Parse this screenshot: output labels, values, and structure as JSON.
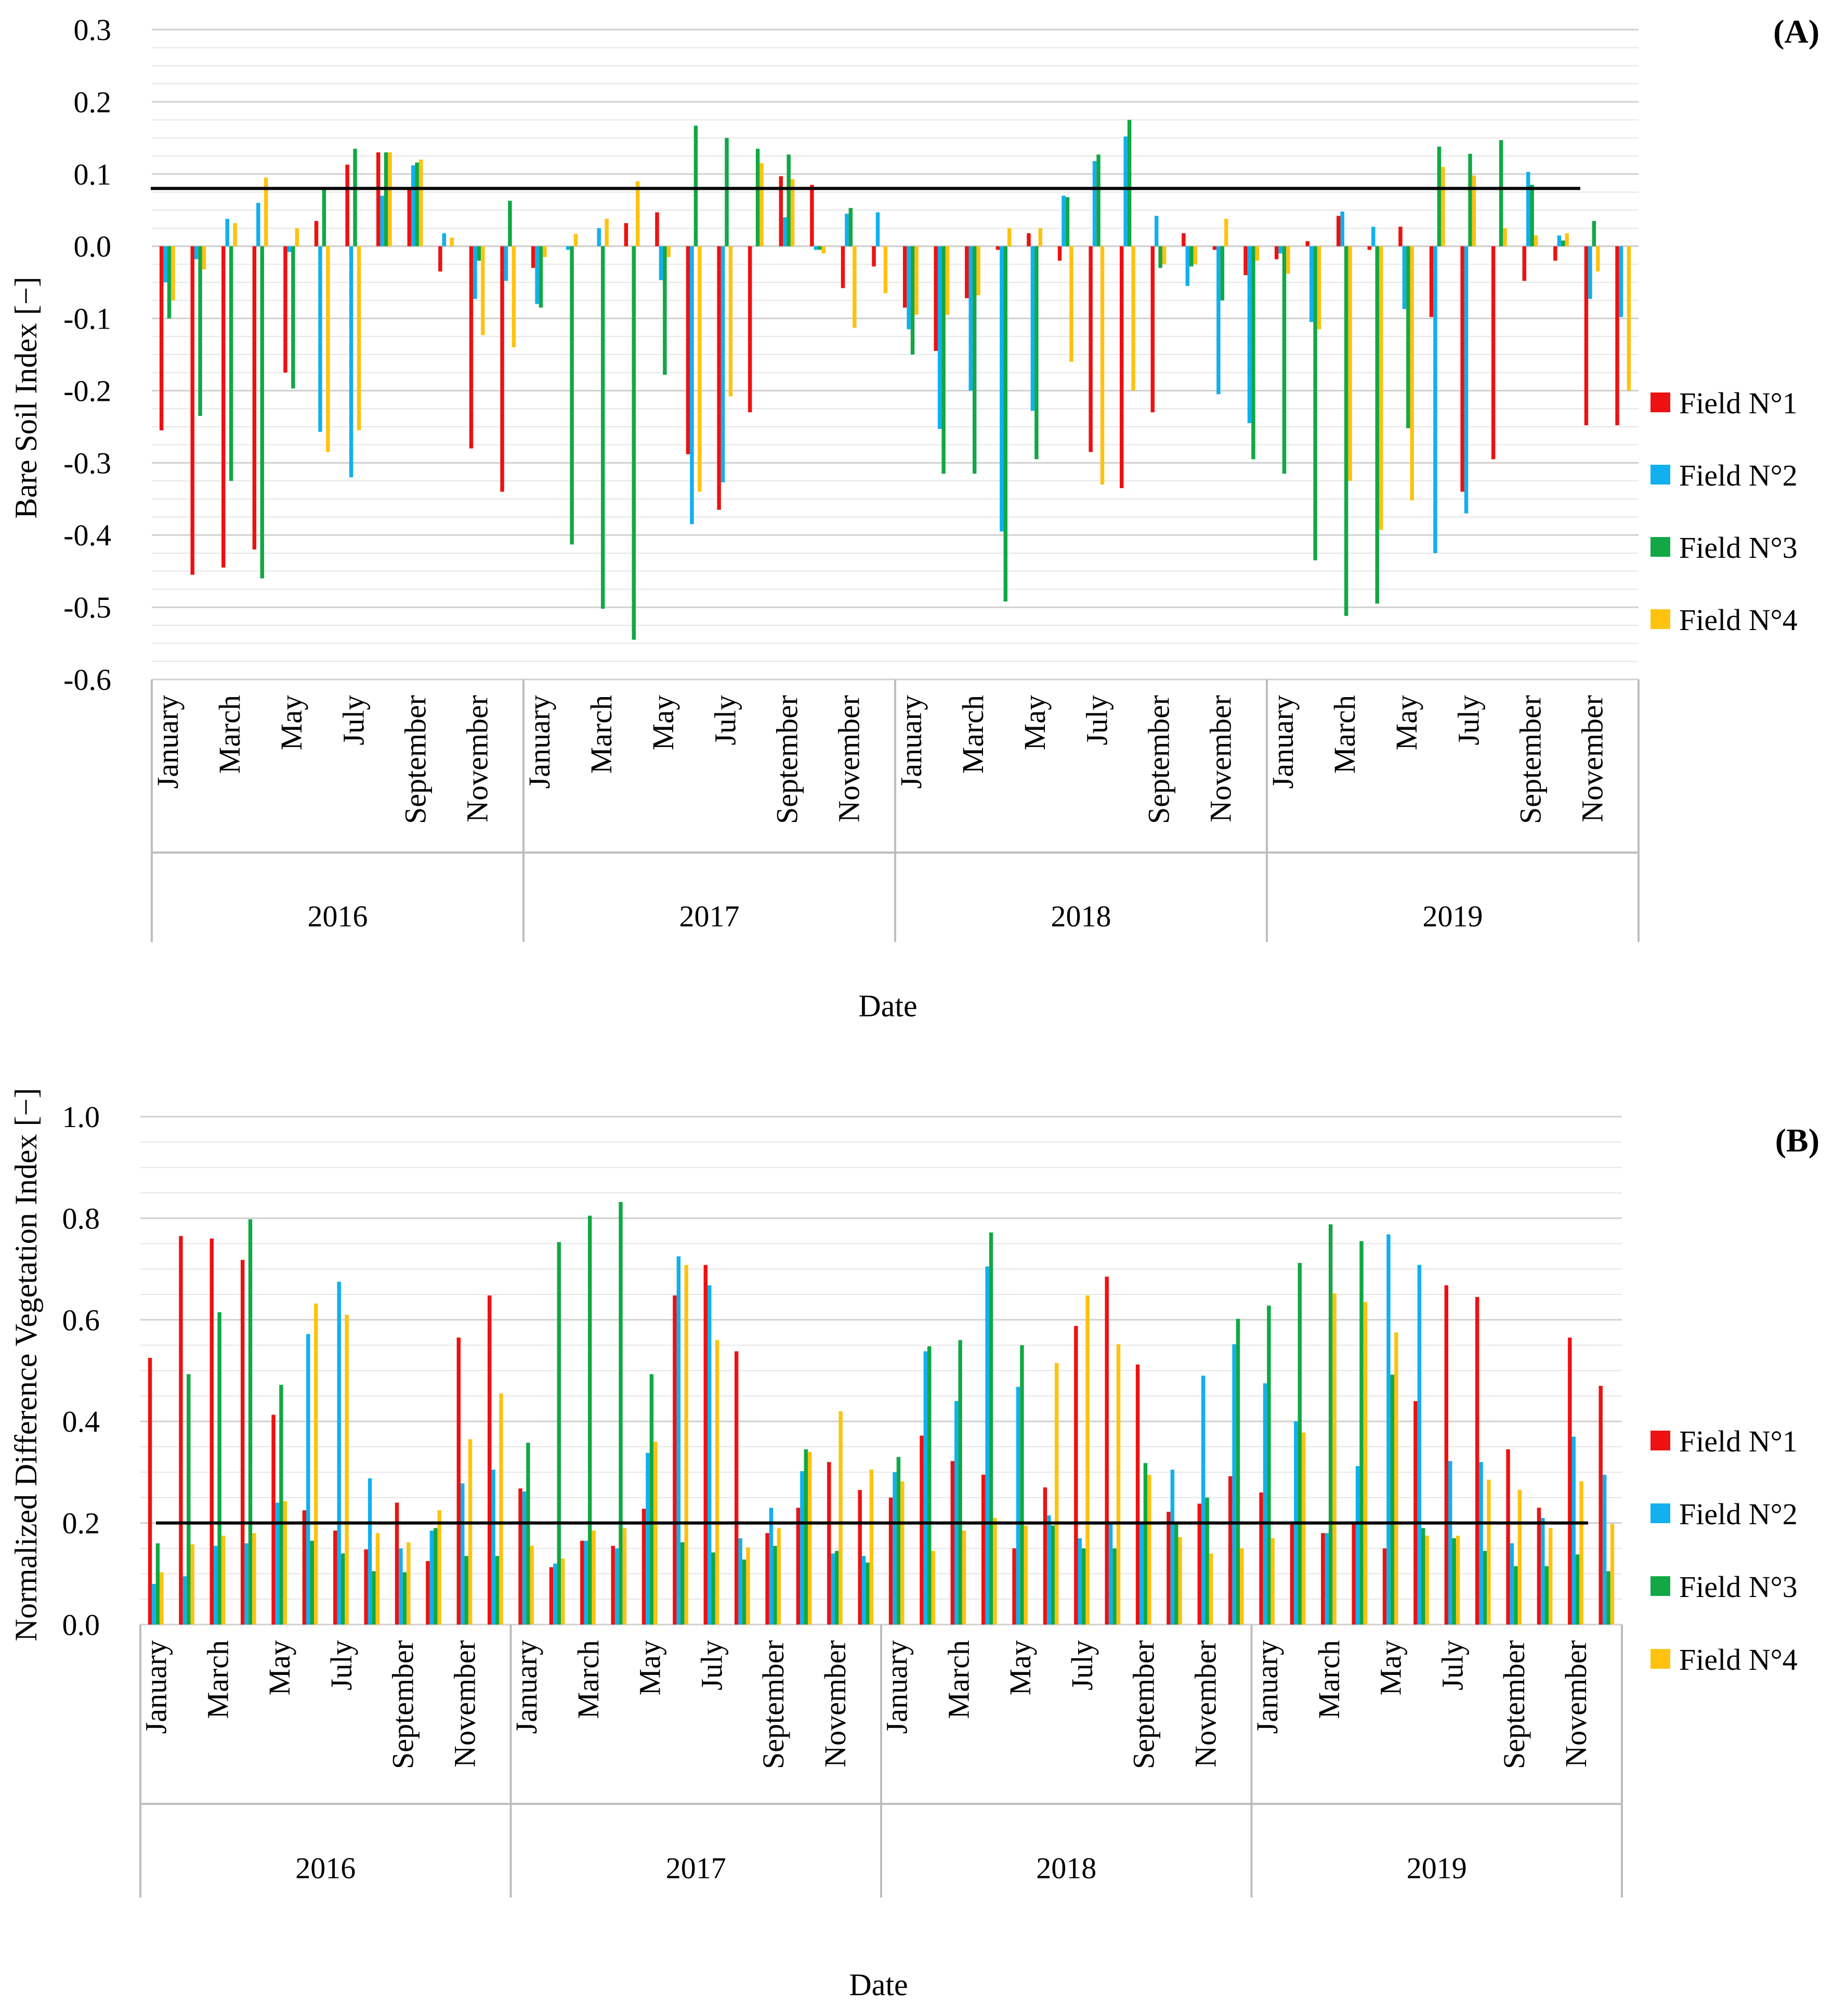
{
  "chart_data": [
    {
      "type": "bar",
      "panel_label": "(A)",
      "title": "",
      "xlabel": "Date",
      "ylabel": "Bare Soil Index [−]",
      "ylim": [
        -0.6,
        0.3
      ],
      "yticks": [
        0.3,
        0.2,
        0.1,
        0.0,
        -0.1,
        -0.2,
        -0.3,
        -0.4,
        -0.5,
        -0.6
      ],
      "ytick_labels": [
        "0.3",
        "0.2",
        "0.1",
        "0.0",
        "-0.1",
        "-0.2",
        "-0.3",
        "-0.4",
        "-0.5",
        "-0.6"
      ],
      "grid": true,
      "legend_position": "right",
      "threshold": 0.08,
      "years": [
        "2016",
        "2017",
        "2018",
        "2019"
      ],
      "month_labels": [
        {
          "index": 0,
          "label": "January"
        },
        {
          "index": 2,
          "label": "March"
        },
        {
          "index": 4,
          "label": "May"
        },
        {
          "index": 6,
          "label": "July"
        },
        {
          "index": 8,
          "label": "September"
        },
        {
          "index": 10,
          "label": "November"
        }
      ],
      "colors": [
        "#ee1111",
        "#11b0ee",
        "#11a845",
        "#ffc20e"
      ],
      "series": [
        {
          "name": "Field N°1",
          "values": [
            -0.255,
            -0.455,
            -0.445,
            -0.42,
            -0.175,
            0.035,
            0.113,
            0.13,
            0.082,
            -0.035,
            -0.28,
            -0.34,
            -0.03,
            null,
            null,
            0.032,
            0.047,
            -0.288,
            -0.365,
            -0.23,
            0.097,
            0.085,
            -0.058,
            -0.028,
            -0.085,
            -0.145,
            -0.072,
            -0.005,
            0.018,
            -0.02,
            -0.285,
            -0.335,
            -0.23,
            0.018,
            -0.005,
            -0.04,
            -0.018,
            0.007,
            0.042,
            -0.005,
            0.027,
            -0.098,
            -0.34,
            -0.295,
            -0.048,
            -0.02,
            -0.248,
            -0.248
          ]
        },
        {
          "name": "Field N°2",
          "values": [
            -0.05,
            -0.018,
            0.038,
            0.06,
            -0.008,
            -0.257,
            -0.32,
            0.07,
            0.112,
            0.018,
            -0.073,
            -0.048,
            -0.08,
            -0.005,
            0.025,
            null,
            -0.047,
            -0.385,
            -0.327,
            null,
            0.04,
            -0.005,
            0.045,
            0.047,
            -0.115,
            -0.253,
            -0.2,
            -0.395,
            -0.228,
            0.07,
            0.118,
            0.152,
            0.042,
            -0.055,
            -0.205,
            -0.245,
            -0.01,
            -0.105,
            0.048,
            0.027,
            -0.087,
            -0.425,
            -0.37,
            null,
            0.103,
            0.015,
            -0.073,
            -0.098
          ]
        },
        {
          "name": "Field N°3",
          "values": [
            -0.1,
            -0.235,
            -0.325,
            -0.46,
            -0.197,
            0.078,
            0.135,
            0.13,
            0.116,
            null,
            -0.02,
            0.063,
            -0.085,
            -0.413,
            -0.502,
            -0.545,
            -0.178,
            0.167,
            0.15,
            0.135,
            0.127,
            -0.005,
            0.053,
            null,
            -0.15,
            -0.315,
            -0.315,
            -0.492,
            -0.295,
            0.068,
            0.127,
            0.175,
            -0.03,
            -0.028,
            -0.075,
            -0.295,
            -0.315,
            -0.435,
            -0.512,
            -0.495,
            -0.252,
            0.138,
            0.128,
            0.147,
            0.085,
            0.008,
            0.035,
            null
          ]
        },
        {
          "name": "Field N°4",
          "values": [
            -0.075,
            -0.032,
            0.032,
            0.095,
            0.025,
            -0.285,
            -0.255,
            0.13,
            0.12,
            0.012,
            -0.123,
            -0.14,
            -0.015,
            0.017,
            0.038,
            0.09,
            -0.015,
            -0.34,
            -0.208,
            0.115,
            0.093,
            -0.01,
            -0.113,
            -0.065,
            -0.095,
            -0.095,
            -0.068,
            0.025,
            0.025,
            -0.16,
            -0.33,
            -0.2,
            -0.025,
            -0.025,
            0.038,
            -0.02,
            -0.038,
            -0.115,
            -0.325,
            -0.393,
            -0.352,
            0.11,
            0.098,
            0.025,
            0.015,
            0.018,
            -0.035,
            -0.2
          ]
        }
      ]
    },
    {
      "type": "bar",
      "panel_label": "(B)",
      "title": "",
      "xlabel": "Date",
      "ylabel": "Normalized Difference Vegetation Index [−]",
      "ylim": [
        0.0,
        1.0
      ],
      "yticks": [
        1.0,
        0.8,
        0.6,
        0.4,
        0.2,
        0.0
      ],
      "ytick_labels": [
        "1.0",
        "0.8",
        "0.6",
        "0.4",
        "0.2",
        "0.0"
      ],
      "grid": true,
      "legend_position": "right",
      "threshold": 0.2,
      "years": [
        "2016",
        "2017",
        "2018",
        "2019"
      ],
      "month_labels": [
        {
          "index": 0,
          "label": "January"
        },
        {
          "index": 2,
          "label": "March"
        },
        {
          "index": 4,
          "label": "May"
        },
        {
          "index": 6,
          "label": "July"
        },
        {
          "index": 8,
          "label": "September"
        },
        {
          "index": 10,
          "label": "November"
        }
      ],
      "colors": [
        "#ee1111",
        "#11b0ee",
        "#11a845",
        "#ffc20e"
      ],
      "series": [
        {
          "name": "Field N°1",
          "values": [
            0.525,
            0.765,
            0.76,
            0.718,
            0.413,
            0.225,
            0.185,
            0.148,
            0.24,
            0.125,
            0.565,
            0.648,
            0.268,
            0.113,
            0.165,
            0.155,
            0.228,
            0.648,
            0.708,
            0.538,
            0.18,
            0.23,
            0.32,
            0.265,
            0.25,
            0.372,
            0.322,
            0.295,
            0.15,
            0.27,
            0.588,
            0.685,
            0.512,
            0.222,
            0.238,
            0.292,
            0.26,
            0.2,
            0.18,
            0.2,
            0.15,
            0.44,
            0.668,
            0.645,
            0.345,
            0.23,
            0.565,
            0.47
          ]
        },
        {
          "name": "Field N°2",
          "values": [
            0.08,
            0.095,
            0.155,
            0.16,
            0.24,
            0.572,
            0.675,
            0.288,
            0.15,
            0.185,
            0.278,
            0.305,
            0.262,
            0.12,
            0.165,
            0.15,
            0.338,
            0.725,
            0.668,
            0.17,
            0.23,
            0.302,
            0.14,
            0.135,
            0.3,
            0.538,
            0.44,
            0.705,
            0.468,
            0.215,
            0.17,
            0.2,
            0.2,
            0.305,
            0.49,
            0.552,
            0.475,
            0.4,
            0.18,
            0.312,
            0.768,
            0.708,
            0.322,
            0.32,
            0.16,
            0.21,
            0.37,
            0.295
          ]
        },
        {
          "name": "Field N°3",
          "values": [
            0.16,
            0.493,
            0.615,
            0.798,
            0.472,
            0.165,
            0.14,
            0.105,
            0.103,
            0.19,
            0.135,
            0.135,
            0.358,
            0.753,
            0.805,
            0.832,
            0.493,
            0.162,
            0.142,
            0.128,
            0.155,
            0.345,
            0.145,
            0.122,
            0.33,
            0.548,
            0.56,
            0.772,
            0.55,
            0.195,
            0.15,
            0.15,
            0.318,
            0.198,
            0.25,
            0.602,
            0.628,
            0.712,
            0.788,
            0.755,
            0.492,
            0.19,
            0.17,
            0.145,
            0.115,
            0.115,
            0.138,
            0.105
          ]
        },
        {
          "name": "Field N°4",
          "values": [
            0.103,
            0.158,
            0.175,
            0.18,
            0.243,
            0.632,
            0.61,
            0.18,
            0.162,
            0.225,
            0.365,
            0.455,
            0.155,
            0.13,
            0.185,
            0.19,
            0.36,
            0.708,
            0.56,
            0.152,
            0.19,
            0.34,
            0.42,
            0.305,
            0.282,
            0.145,
            0.185,
            0.21,
            0.195,
            0.515,
            0.648,
            0.552,
            0.295,
            0.172,
            0.14,
            0.15,
            0.17,
            0.378,
            0.652,
            0.635,
            0.575,
            0.175,
            0.175,
            0.285,
            0.265,
            0.19,
            0.282,
            0.198
          ]
        }
      ]
    }
  ]
}
